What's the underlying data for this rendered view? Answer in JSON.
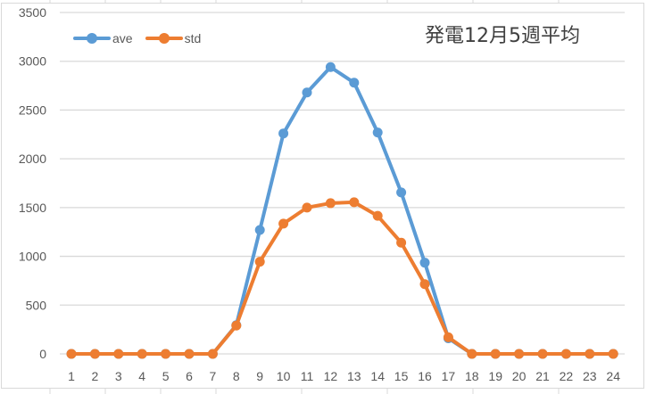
{
  "chart_data": {
    "type": "line",
    "title": "発電12月5週平均",
    "xlabel": "",
    "ylabel": "",
    "categories": [
      "1",
      "2",
      "3",
      "4",
      "5",
      "6",
      "7",
      "8",
      "9",
      "10",
      "11",
      "12",
      "13",
      "14",
      "15",
      "16",
      "17",
      "18",
      "19",
      "20",
      "21",
      "22",
      "23",
      "24"
    ],
    "series": [
      {
        "name": "ave",
        "color": "#5b9bd5",
        "values": [
          0,
          0,
          0,
          0,
          0,
          0,
          0,
          295,
          1270,
          2260,
          2680,
          2940,
          2780,
          2270,
          1655,
          935,
          160,
          0,
          0,
          0,
          0,
          0,
          0,
          0
        ]
      },
      {
        "name": "std",
        "color": "#ed7d31",
        "values": [
          0,
          0,
          0,
          0,
          0,
          0,
          0,
          290,
          945,
          1335,
          1500,
          1545,
          1555,
          1415,
          1140,
          715,
          170,
          0,
          0,
          0,
          0,
          0,
          0,
          0
        ]
      }
    ],
    "ylim": [
      0,
      3500
    ],
    "yticks": [
      0,
      500,
      1000,
      1500,
      2000,
      2500,
      3000,
      3500
    ],
    "grid": true,
    "legend_position": "top-left",
    "markers": true
  },
  "legend": {
    "items": [
      {
        "label": "ave",
        "color": "#5b9bd5"
      },
      {
        "label": "std",
        "color": "#ed7d31"
      }
    ]
  },
  "title": "発電12月5週平均"
}
